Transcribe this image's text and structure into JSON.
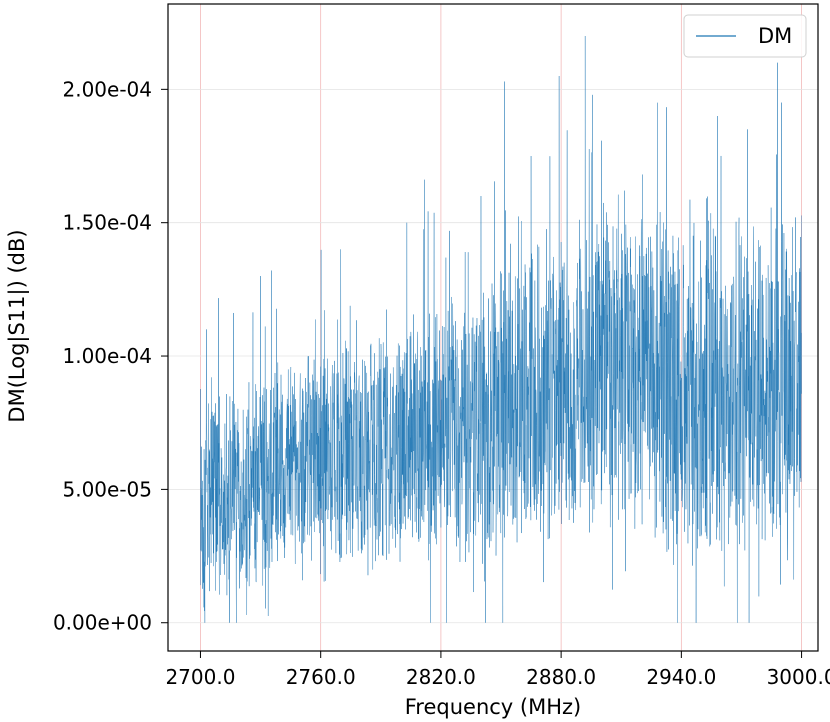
{
  "chart_data": {
    "type": "line",
    "title": "",
    "xlabel": "Frequency (MHz)",
    "ylabel": "DM(Log|S11|) (dB)",
    "xlim": [
      2683.8,
      3008.2
    ],
    "ylim": [
      -1.06e-05,
      0.000232
    ],
    "x_ticks": [
      2700,
      2760,
      2820,
      2880,
      2940,
      3000
    ],
    "x_tick_labels": [
      "2700.0",
      "2760.0",
      "2820.0",
      "2880.0",
      "2940.0",
      "3000.0"
    ],
    "y_ticks": [
      0.0,
      5e-05,
      0.0001,
      0.00015,
      0.0002
    ],
    "y_tick_labels": [
      "0.00e+00",
      "5.00e-05",
      "1.00e-04",
      "1.50e-04",
      "2.00e-04"
    ],
    "grid": true,
    "legend_position": "top-right",
    "series": [
      {
        "name": "DM",
        "color": "#1f77b4",
        "x_start": 2700,
        "x_end": 3000,
        "point_count": 3001,
        "trend_points": [
          {
            "x": 2700,
            "y": 4.5e-05
          },
          {
            "x": 2760,
            "y": 6e-05
          },
          {
            "x": 2820,
            "y": 7e-05
          },
          {
            "x": 2880,
            "y": 9e-05
          },
          {
            "x": 2910,
            "y": 0.0001
          },
          {
            "x": 2940,
            "y": 8.5e-05
          },
          {
            "x": 3000,
            "y": 9e-05
          }
        ],
        "spread_points": [
          {
            "x": 2700,
            "y": 3e-05
          },
          {
            "x": 2760,
            "y": 3.5e-05
          },
          {
            "x": 2820,
            "y": 4e-05
          },
          {
            "x": 2880,
            "y": 4.8e-05
          },
          {
            "x": 2940,
            "y": 5.2e-05
          },
          {
            "x": 3000,
            "y": 5.2e-05
          }
        ],
        "peak_points": [
          {
            "x": 2703,
            "y": 0.00011
          },
          {
            "x": 2730,
            "y": 0.00013
          },
          {
            "x": 2770,
            "y": 0.00014
          },
          {
            "x": 2803,
            "y": 0.00015
          },
          {
            "x": 2840,
            "y": 0.00016
          },
          {
            "x": 2865,
            "y": 0.000175
          },
          {
            "x": 2879,
            "y": 0.000205
          },
          {
            "x": 2892,
            "y": 0.00022
          },
          {
            "x": 2928,
            "y": 0.000195
          },
          {
            "x": 2958,
            "y": 0.00019
          },
          {
            "x": 2973,
            "y": 0.000185
          },
          {
            "x": 2988,
            "y": 0.00021
          }
        ],
        "min_value": 0.0
      }
    ]
  }
}
